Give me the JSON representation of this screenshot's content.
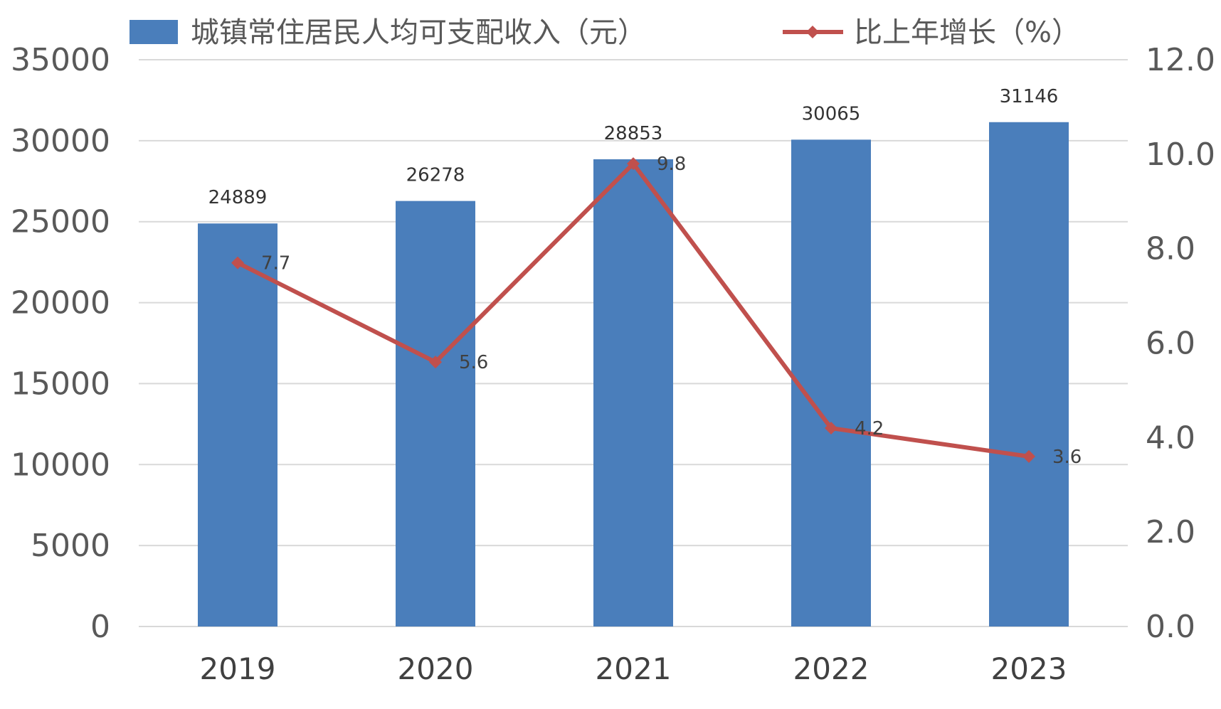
{
  "chart_data": {
    "type": "bar",
    "categories": [
      "2019",
      "2020",
      "2021",
      "2022",
      "2023"
    ],
    "series": [
      {
        "name": "城镇常住居民人均可支配收入（元）",
        "type": "bar",
        "axis": "left",
        "values": [
          24889,
          26278,
          28853,
          30065,
          31146
        ],
        "color": "#4a7ebb"
      },
      {
        "name": "比上年增长（%）",
        "type": "line",
        "axis": "right",
        "values": [
          7.7,
          5.6,
          9.8,
          4.2,
          3.6
        ],
        "color": "#c0504d"
      }
    ],
    "bar_labels": [
      "24889",
      "26278",
      "28853",
      "30065",
      "31146"
    ],
    "line_labels": [
      "7.7",
      "5.6",
      "9.8",
      "4.2",
      "3.6"
    ],
    "y_left": {
      "ylim": [
        0,
        35000
      ],
      "ticks": [
        "0",
        "5000",
        "10000",
        "15000",
        "20000",
        "25000",
        "30000",
        "35000"
      ]
    },
    "y_right": {
      "ylim": [
        0,
        12
      ],
      "ticks": [
        "0.0",
        "2.0",
        "4.0",
        "6.0",
        "8.0",
        "10.0",
        "12.0"
      ]
    },
    "grid": true,
    "legend_position": "top",
    "colors": {
      "gridline": "#d9d9d9",
      "axis_text": "#595959"
    }
  }
}
